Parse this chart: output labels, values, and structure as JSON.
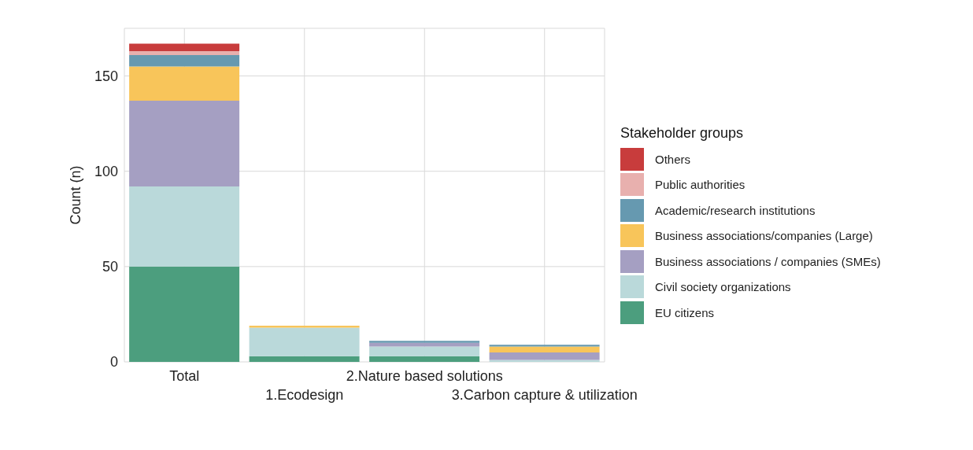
{
  "chart_data": {
    "type": "bar",
    "stacked": true,
    "ylabel": "Count (n)",
    "legend_title": "Stakeholder groups",
    "legend": "right",
    "grid": true,
    "categories": [
      "Total",
      "1.Ecodesign",
      "2.Nature based solutions",
      "3.Carbon capture & utilization"
    ],
    "ylim": [
      0,
      175
    ],
    "yticks": [
      0,
      50,
      100,
      150
    ],
    "series": [
      {
        "name": "EU citizens",
        "color": "#4c9e7e",
        "values": [
          50,
          3,
          3,
          0
        ]
      },
      {
        "name": "Civil society organizations",
        "color": "#bad9da",
        "values": [
          42,
          15,
          5,
          1
        ]
      },
      {
        "name": "Business associations / companies (SMEs)",
        "color": "#a59fc2",
        "values": [
          45,
          0,
          2,
          4
        ]
      },
      {
        "name": "Business associations/companies (Large)",
        "color": "#f8c55a",
        "values": [
          18,
          1,
          0,
          3
        ]
      },
      {
        "name": "Academic/research institutions",
        "color": "#6699b0",
        "values": [
          6,
          0,
          1,
          1
        ]
      },
      {
        "name": "Public authorities",
        "color": "#e8b0ae",
        "values": [
          2,
          0,
          0,
          0
        ]
      },
      {
        "name": "Others",
        "color": "#c83c3c",
        "values": [
          4,
          0,
          0,
          0
        ]
      }
    ]
  }
}
